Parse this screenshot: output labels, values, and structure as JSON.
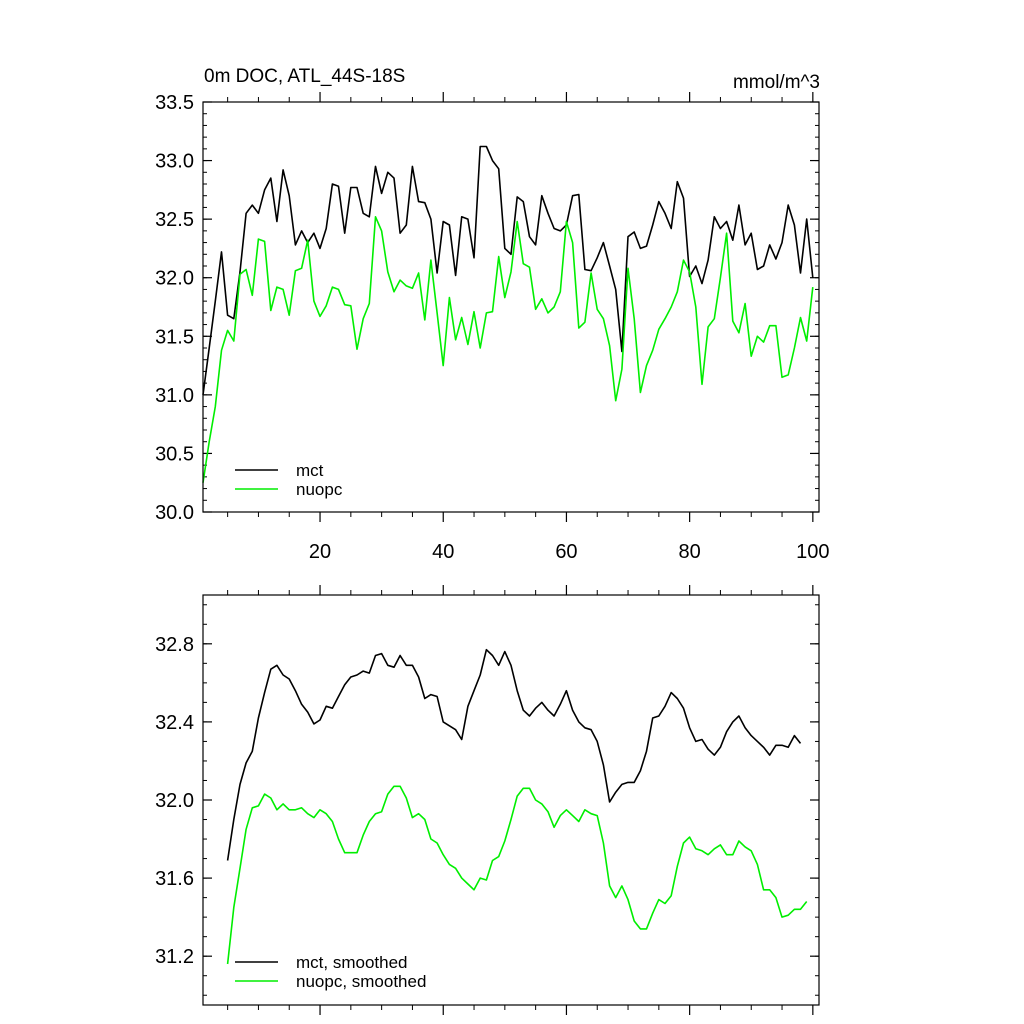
{
  "chart_data": [
    {
      "type": "line",
      "title": "0m DOC, ATL_44S-18S",
      "units": "mmol/m^3",
      "xlim": [
        1,
        101
      ],
      "ylim": [
        30.0,
        33.5
      ],
      "x_ticks": [
        20,
        40,
        60,
        80,
        100
      ],
      "y_ticks": [
        30.0,
        30.5,
        31.0,
        31.5,
        32.0,
        32.5,
        33.0,
        33.5
      ],
      "y_tick_labels": [
        "30.0",
        "30.5",
        "31.0",
        "31.5",
        "32.0",
        "32.5",
        "33.0",
        "33.5"
      ],
      "legend_position": "bottom-left",
      "series": [
        {
          "name": "mct",
          "color": "#000000",
          "x_start": 1,
          "values": [
            31.0,
            31.4,
            31.8,
            32.22,
            31.68,
            31.65,
            32.05,
            32.55,
            32.62,
            32.55,
            32.75,
            32.85,
            32.48,
            32.92,
            32.7,
            32.28,
            32.4,
            32.3,
            32.38,
            32.25,
            32.42,
            32.8,
            32.78,
            32.38,
            32.77,
            32.77,
            32.55,
            32.52,
            32.95,
            32.72,
            32.9,
            32.85,
            32.38,
            32.45,
            32.95,
            32.65,
            32.64,
            32.5,
            32.04,
            32.48,
            32.45,
            32.02,
            32.52,
            32.5,
            32.17,
            33.12,
            33.12,
            33.0,
            32.93,
            32.25,
            32.2,
            32.69,
            32.65,
            32.35,
            32.28,
            32.7,
            32.55,
            32.42,
            32.4,
            32.45,
            32.7,
            32.71,
            32.07,
            32.06,
            32.17,
            32.3,
            32.1,
            31.9,
            31.37,
            32.35,
            32.39,
            32.25,
            32.27,
            32.45,
            32.65,
            32.55,
            32.42,
            32.82,
            32.68,
            32.01,
            32.1,
            31.95,
            32.15,
            32.52,
            32.42,
            32.48,
            32.32,
            32.62,
            32.28,
            32.38,
            32.07,
            32.1,
            32.28,
            32.16,
            32.3,
            32.62,
            32.45,
            32.04,
            32.5,
            32.0
          ]
        },
        {
          "name": "nuopc",
          "color": "#00ee00",
          "x_start": 1,
          "values": [
            30.25,
            30.6,
            30.9,
            31.38,
            31.55,
            31.46,
            32.03,
            32.07,
            31.85,
            32.33,
            32.31,
            31.72,
            31.92,
            31.9,
            31.68,
            32.06,
            32.08,
            32.32,
            31.8,
            31.67,
            31.76,
            31.92,
            31.9,
            31.77,
            31.76,
            31.39,
            31.65,
            31.78,
            32.52,
            32.4,
            32.05,
            31.88,
            31.98,
            31.93,
            31.91,
            32.04,
            31.64,
            32.15,
            31.7,
            31.25,
            31.83,
            31.47,
            31.66,
            31.43,
            31.71,
            31.4,
            31.7,
            31.71,
            32.18,
            31.83,
            32.05,
            32.48,
            32.12,
            32.09,
            31.73,
            31.82,
            31.7,
            31.75,
            31.88,
            32.48,
            32.3,
            31.57,
            31.62,
            32.04,
            31.73,
            31.65,
            31.42,
            30.95,
            31.22,
            32.08,
            31.65,
            31.02,
            31.25,
            31.38,
            31.56,
            31.65,
            31.75,
            31.88,
            32.15,
            32.05,
            31.75,
            31.09,
            31.58,
            31.65,
            32.0,
            32.38,
            31.63,
            31.53,
            31.78,
            31.33,
            31.5,
            31.45,
            31.59,
            31.59,
            31.15,
            31.17,
            31.4,
            31.66,
            31.46,
            31.92
          ]
        }
      ]
    },
    {
      "type": "line",
      "xlim": [
        1,
        101
      ],
      "ylim": [
        30.95,
        33.05
      ],
      "y_ticks": [
        31.2,
        31.6,
        32.0,
        32.4,
        32.8
      ],
      "y_tick_labels": [
        "31.2",
        "31.6",
        "32.0",
        "32.4",
        "32.8"
      ],
      "x_ticks": [
        20,
        40,
        60,
        80,
        100
      ],
      "legend_position": "bottom-left",
      "series": [
        {
          "name": "mct, smoothed",
          "color": "#000000",
          "x_start": 5,
          "values": [
            31.69,
            31.9,
            32.08,
            32.19,
            32.25,
            32.42,
            32.55,
            32.67,
            32.69,
            32.64,
            32.62,
            32.56,
            32.49,
            32.45,
            32.39,
            32.41,
            32.48,
            32.47,
            32.53,
            32.59,
            32.63,
            32.64,
            32.66,
            32.65,
            32.74,
            32.75,
            32.69,
            32.68,
            32.74,
            32.69,
            32.69,
            32.63,
            32.52,
            32.54,
            32.53,
            32.4,
            32.38,
            32.36,
            32.31,
            32.48,
            32.56,
            32.64,
            32.77,
            32.74,
            32.69,
            32.76,
            32.69,
            32.56,
            32.46,
            32.43,
            32.47,
            32.5,
            32.46,
            32.43,
            32.49,
            32.56,
            32.46,
            32.4,
            32.37,
            32.36,
            32.3,
            32.18,
            31.99,
            32.04,
            32.08,
            32.09,
            32.09,
            32.15,
            32.25,
            32.42,
            32.43,
            32.48,
            32.55,
            32.52,
            32.47,
            32.37,
            32.3,
            32.31,
            32.26,
            32.23,
            32.27,
            32.35,
            32.4,
            32.43,
            32.37,
            32.33,
            32.3,
            32.27,
            32.23,
            32.28,
            32.28,
            32.27,
            32.33,
            32.29
          ]
        },
        {
          "name": "nuopc, smoothed",
          "color": "#00ee00",
          "x_start": 5,
          "values": [
            31.16,
            31.45,
            31.65,
            31.85,
            31.96,
            31.97,
            32.03,
            32.01,
            31.95,
            31.98,
            31.95,
            31.95,
            31.96,
            31.93,
            31.91,
            31.95,
            31.93,
            31.89,
            31.8,
            31.73,
            31.73,
            31.73,
            31.82,
            31.89,
            31.93,
            31.94,
            32.03,
            32.07,
            32.07,
            32.01,
            31.91,
            31.93,
            31.9,
            31.8,
            31.78,
            31.72,
            31.67,
            31.65,
            31.6,
            31.57,
            31.54,
            31.6,
            31.59,
            31.69,
            31.71,
            31.79,
            31.9,
            32.02,
            32.06,
            32.06,
            32.0,
            31.98,
            31.94,
            31.86,
            31.92,
            31.95,
            31.92,
            31.89,
            31.95,
            31.93,
            31.92,
            31.78,
            31.56,
            31.5,
            31.56,
            31.49,
            31.38,
            31.34,
            31.34,
            31.42,
            31.49,
            31.47,
            31.51,
            31.66,
            31.78,
            31.81,
            31.75,
            31.74,
            31.72,
            31.75,
            31.77,
            31.72,
            31.72,
            31.79,
            31.76,
            31.74,
            31.67,
            31.54,
            31.54,
            31.5,
            31.4,
            31.41,
            31.44,
            31.44,
            31.48
          ]
        }
      ]
    }
  ]
}
